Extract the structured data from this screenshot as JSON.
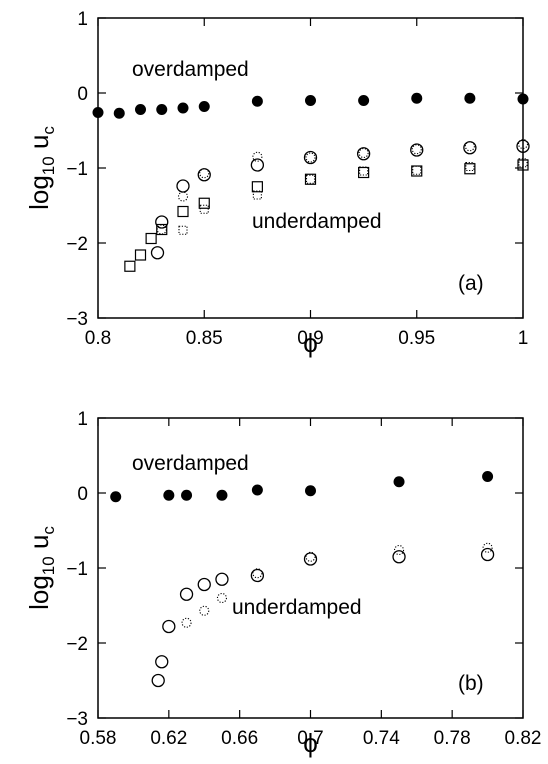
{
  "chart_data": [
    {
      "type": "scatter",
      "panel_label": "(a)",
      "ylabel": "log",
      "ylabel_sub": "10",
      "ylabel_var": " u",
      "ylabel_var_sub": "c",
      "xlabel": "ϕ",
      "xlim": [
        0.8,
        1.0
      ],
      "ylim": [
        -3,
        1
      ],
      "xticks": [
        0.8,
        0.85,
        0.9,
        0.95,
        1.0
      ],
      "xtick_labels": [
        "0.8",
        "0.85",
        "0.9",
        "0.95",
        "1"
      ],
      "yticks": [
        -3,
        -2,
        -1,
        0,
        1
      ],
      "ytick_labels": [
        "−3",
        "−2",
        "−1",
        "0",
        "1"
      ],
      "annotations": [
        "overdamped",
        "underdamped"
      ],
      "series": [
        {
          "marker": "filled-circle",
          "x": [
            0.8,
            0.81,
            0.82,
            0.83,
            0.84,
            0.85,
            0.875,
            0.9,
            0.925,
            0.95,
            0.975,
            1.0
          ],
          "y": [
            -0.26,
            -0.27,
            -0.22,
            -0.22,
            -0.2,
            -0.18,
            -0.11,
            -0.1,
            -0.1,
            -0.07,
            -0.07,
            -0.08
          ]
        },
        {
          "marker": "open-circle",
          "x": [
            0.828,
            0.83,
            0.84,
            0.85,
            0.875,
            0.9,
            0.925,
            0.95,
            0.975,
            1.0
          ],
          "y": [
            -2.13,
            -1.72,
            -1.24,
            -1.09,
            -0.96,
            -0.86,
            -0.81,
            -0.76,
            -0.73,
            -0.71
          ]
        },
        {
          "marker": "dotted-circle",
          "x": [
            0.83,
            0.84,
            0.85,
            0.875,
            0.9,
            0.925,
            0.95,
            0.975,
            1.0
          ],
          "y": [
            -1.82,
            -1.38,
            -1.07,
            -0.85,
            -0.86,
            -0.8,
            -0.75,
            -0.71,
            -0.68
          ]
        },
        {
          "marker": "open-square",
          "x": [
            0.815,
            0.82,
            0.825,
            0.83,
            0.84,
            0.85,
            0.875,
            0.9,
            0.925,
            0.95,
            0.975,
            1.0
          ],
          "y": [
            -2.31,
            -2.16,
            -1.94,
            -1.82,
            -1.58,
            -1.47,
            -1.25,
            -1.15,
            -1.06,
            -1.04,
            -1.01,
            -0.96
          ]
        },
        {
          "marker": "dotted-square",
          "x": [
            0.84,
            0.85,
            0.875,
            0.9,
            0.925,
            0.95,
            0.975,
            1.0
          ],
          "y": [
            -1.83,
            -1.55,
            -1.36,
            -1.15,
            -1.04,
            -1.03,
            -0.98,
            -0.93
          ]
        }
      ]
    },
    {
      "type": "scatter",
      "panel_label": "(b)",
      "ylabel": "log",
      "ylabel_sub": "10",
      "ylabel_var": " u",
      "ylabel_var_sub": "c",
      "xlabel": "ϕ",
      "xlim": [
        0.58,
        0.82
      ],
      "ylim": [
        -3,
        1
      ],
      "xticks": [
        0.58,
        0.62,
        0.66,
        0.7,
        0.74,
        0.78,
        0.82
      ],
      "xtick_labels": [
        "0.58",
        "0.62",
        "0.66",
        "0.7",
        "0.74",
        "0.78",
        "0.82"
      ],
      "yticks": [
        -3,
        -2,
        -1,
        0,
        1
      ],
      "ytick_labels": [
        "−3",
        "−2",
        "−1",
        "0",
        "1"
      ],
      "annotations": [
        "overdamped",
        "underdamped"
      ],
      "series": [
        {
          "marker": "filled-circle",
          "x": [
            0.59,
            0.62,
            0.63,
            0.65,
            0.67,
            0.7,
            0.75,
            0.8
          ],
          "y": [
            -0.05,
            -0.03,
            -0.03,
            -0.03,
            0.04,
            0.03,
            0.15,
            0.22
          ]
        },
        {
          "marker": "open-circle",
          "x": [
            0.614,
            0.616,
            0.62,
            0.63,
            0.64,
            0.65,
            0.67,
            0.7,
            0.75,
            0.8
          ],
          "y": [
            -2.5,
            -2.25,
            -1.78,
            -1.35,
            -1.22,
            -1.15,
            -1.1,
            -0.88,
            -0.85,
            -0.82
          ]
        },
        {
          "marker": "dotted-circle",
          "x": [
            0.63,
            0.64,
            0.65,
            0.67,
            0.7,
            0.75,
            0.8
          ],
          "y": [
            -1.73,
            -1.57,
            -1.4,
            -1.07,
            -0.85,
            -0.76,
            -0.73
          ]
        }
      ]
    }
  ]
}
